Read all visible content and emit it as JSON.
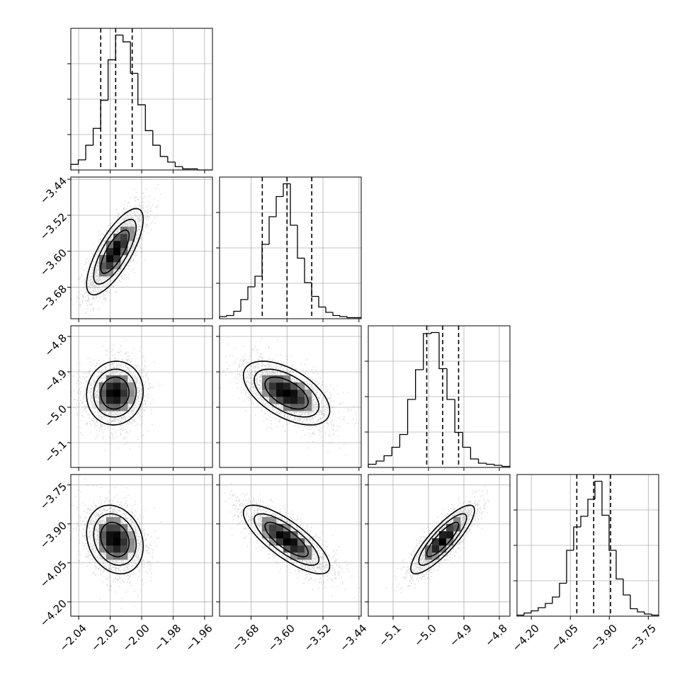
{
  "figure": {
    "kind": "corner plot"
  },
  "chart_data": {
    "type": "corner",
    "colors": {
      "line": "#000000",
      "grid": "#b0b0b0",
      "scatter": "#8a8a8a",
      "background": "#ffffff"
    },
    "grid": true,
    "params": [
      {
        "range": [
          -2.045,
          -1.955
        ],
        "ticks": [
          -2.04,
          -2.02,
          -2.0,
          -1.98,
          -1.96
        ],
        "tick_labels": [
          "−2.04",
          "−2.02",
          "−2.00",
          "−1.98",
          "−1.96"
        ],
        "quantiles": [
          -2.026,
          -2.0165,
          -2.006
        ],
        "mean": -2.017,
        "sd": 0.009
      },
      {
        "range": [
          -3.75,
          -3.435
        ],
        "ticks": [
          -3.68,
          -3.6,
          -3.52,
          -3.44
        ],
        "tick_labels": [
          "−3.68",
          "−3.60",
          "−3.52",
          "−3.44"
        ],
        "quantiles": [
          -3.655,
          -3.6,
          -3.545
        ],
        "mean": -3.601,
        "sd": 0.048
      },
      {
        "range": [
          -5.17,
          -4.77
        ],
        "ticks": [
          -5.1,
          -5.0,
          -4.9,
          -4.8
        ],
        "tick_labels": [
          "−5.1",
          "−5.0",
          "−4.9",
          "−4.8"
        ],
        "quantiles": [
          -5.005,
          -4.96,
          -4.915
        ],
        "mean": -4.96,
        "sd": 0.045
      },
      {
        "range": [
          -4.255,
          -3.71
        ],
        "ticks": [
          -4.2,
          -4.05,
          -3.9,
          -3.75
        ],
        "tick_labels": [
          "−4.20",
          "−4.05",
          "−3.90",
          "−3.75"
        ],
        "quantiles": [
          -4.025,
          -3.96,
          -3.895
        ],
        "mean": -3.96,
        "sd": 0.066
      }
    ],
    "histograms": [
      {
        "counts": [
          5,
          9,
          22,
          37,
          62,
          98,
          120,
          114,
          86,
          58,
          35,
          22,
          12,
          7,
          3,
          1,
          1,
          0,
          0
        ]
      },
      {
        "counts": [
          2,
          3,
          7,
          18,
          30,
          40,
          70,
          96,
          115,
          127,
          88,
          57,
          34,
          21,
          11,
          6,
          3,
          2,
          1,
          1
        ]
      },
      {
        "counts": [
          3,
          6,
          11,
          19,
          31,
          64,
          92,
          126,
          127,
          93,
          64,
          33,
          19,
          8,
          4,
          3,
          2,
          1
        ]
      },
      {
        "counts": [
          1,
          3,
          5,
          8,
          12,
          18,
          31,
          62,
          84,
          94,
          110,
          127,
          95,
          62,
          35,
          20,
          7,
          4,
          2,
          1
        ]
      }
    ],
    "correlations": [
      {
        "pair": [
          1,
          0
        ],
        "rho": 0.75
      },
      {
        "pair": [
          2,
          0
        ],
        "rho": 0.05
      },
      {
        "pair": [
          2,
          1
        ],
        "rho": -0.55
      },
      {
        "pair": [
          3,
          0
        ],
        "rho": -0.2
      },
      {
        "pair": [
          3,
          1
        ],
        "rho": -0.78
      },
      {
        "pair": [
          3,
          2
        ],
        "rho": 0.85
      }
    ],
    "contour_levels_sigma": [
      1.0,
      1.5,
      2.0
    ]
  }
}
